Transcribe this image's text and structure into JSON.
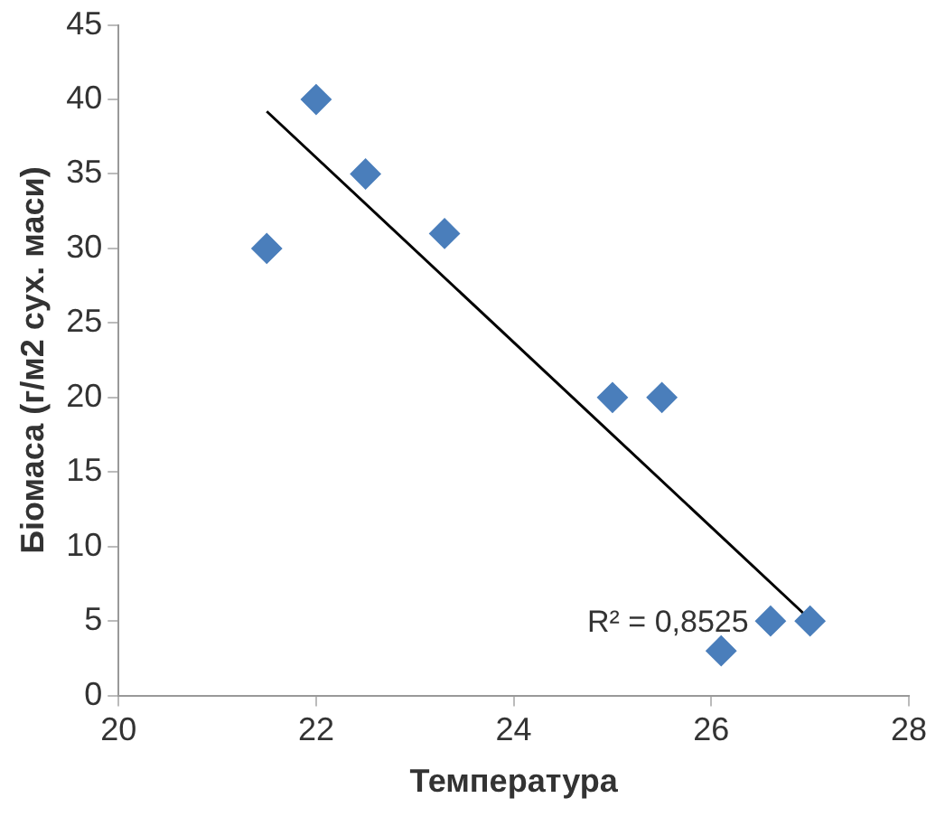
{
  "chart_data": {
    "type": "scatter",
    "xlabel": "Температура",
    "ylabel": "Біомаса (г/м2 сух. маси)",
    "xlim": [
      20,
      28
    ],
    "xticks": [
      20,
      22,
      24,
      26,
      28
    ],
    "ylim": [
      0,
      45
    ],
    "yticks": [
      0,
      5,
      10,
      15,
      20,
      25,
      30,
      35,
      40,
      45
    ],
    "grid": false,
    "legend": false,
    "marker": "diamond",
    "annotations": [
      "R² = 0,8525"
    ],
    "series": [
      {
        "color": "#4a7ebb",
        "x": [
          21.5,
          22,
          22.5,
          23.3,
          25,
          25.5,
          26.1,
          26.6,
          27
        ],
        "values": [
          30,
          40,
          35,
          31,
          20,
          20,
          3,
          5,
          5
        ]
      },
      {
        "type": "line",
        "marker": "none",
        "color": "#000000",
        "x": [
          21.5,
          27
        ],
        "values": [
          39.2,
          5.1
        ]
      }
    ]
  }
}
